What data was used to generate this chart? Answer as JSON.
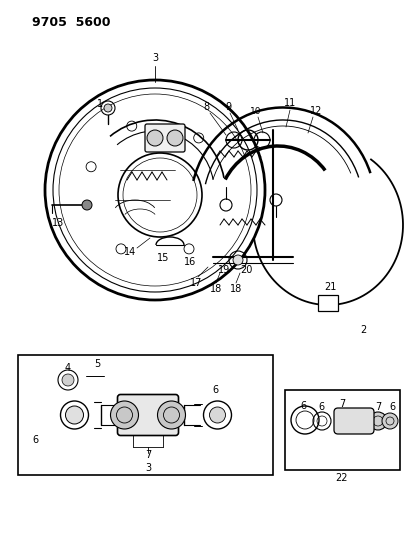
{
  "title": "9705 5600",
  "bg_color": "#ffffff",
  "line_color": "#000000",
  "fig_width": 4.11,
  "fig_height": 5.33,
  "dpi": 100
}
